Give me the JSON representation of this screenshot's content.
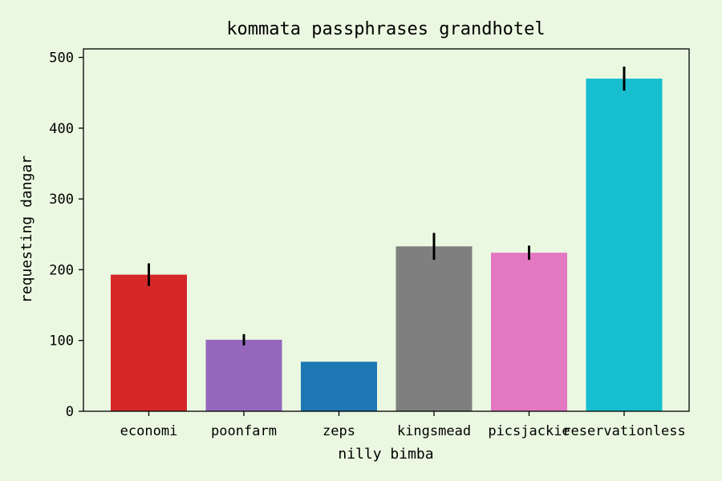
{
  "chart_data": {
    "type": "bar",
    "title": "kommata passphrases grandhotel",
    "xlabel": "nilly bimba",
    "ylabel": "requesting dangar",
    "categories": [
      "economi",
      "poonfarm",
      "zeps",
      "kingsmead",
      "picsjackie",
      "reservationless"
    ],
    "values": [
      193,
      101,
      70,
      233,
      224,
      470
    ],
    "errors": [
      16,
      8,
      0,
      19,
      10,
      17
    ],
    "colors": [
      "#d62728",
      "#9467bd",
      "#1f77b4",
      "#7f7f7f",
      "#e377c2",
      "#17becf"
    ],
    "ylim": [
      0,
      512
    ],
    "yticks": [
      0,
      100,
      200,
      300,
      400,
      500
    ],
    "grid": false,
    "background": "#eaf8e1"
  }
}
